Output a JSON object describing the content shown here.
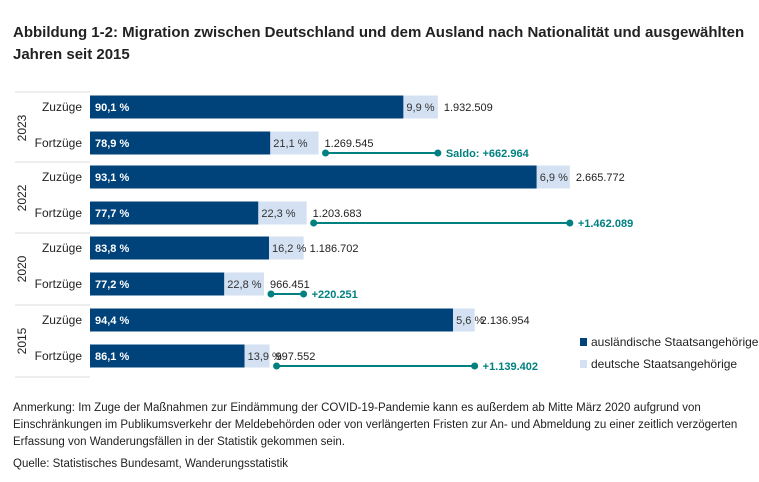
{
  "title": "Abbildung 1-2: Migration zwischen Deutschland und dem Ausland nach Nationalität und ausgewählten Jahren seit 2015",
  "note": "Anmerkung: Im Zuge der Maßnahmen zur Eindämmung der COVID-19-Pandemie kann es außerdem ab Mitte März 2020 aufgrund von Einschränkungen im Publikumsverkehr der Meldebehörden oder von verlängerten Fristen zur An- und Abmeldung zu einer zeitlich verzögerten Erfassung von Wanderungsfällen in der Statistik gekommen sein.",
  "source": "Quelle: Statistisches Bundesamt, Wanderungsstatistik",
  "colors": {
    "foreign": "#00427a",
    "german": "#d3e1f2",
    "saldo": "#008080"
  },
  "chart_data": {
    "type": "bar",
    "orientation": "horizontal-stacked",
    "legend_placement": "bottom-right",
    "series": [
      {
        "name": "ausländische Staatsangehörige"
      },
      {
        "name": "deutsche Staatsangehörige"
      }
    ],
    "groups": [
      {
        "year": "2023",
        "rows": [
          {
            "label": "Zuzüge",
            "foreign_pct": "90,1 %",
            "german_pct": "9,9 %",
            "total": 1932509,
            "total_label": "1.932.509"
          },
          {
            "label": "Fortzüge",
            "foreign_pct": "78,9 %",
            "german_pct": "21,1 %",
            "total": 1269545,
            "total_label": "1.269.545"
          }
        ],
        "saldo": 662964,
        "saldo_label": "Saldo: +662.964"
      },
      {
        "year": "2022",
        "rows": [
          {
            "label": "Zuzüge",
            "foreign_pct": "93,1 %",
            "german_pct": "6,9 %",
            "total": 2665772,
            "total_label": "2.665.772"
          },
          {
            "label": "Fortzüge",
            "foreign_pct": "77,7 %",
            "german_pct": "22,3 %",
            "total": 1203683,
            "total_label": "1.203.683"
          }
        ],
        "saldo": 1462089,
        "saldo_label": "+1.462.089"
      },
      {
        "year": "2020",
        "rows": [
          {
            "label": "Zuzüge",
            "foreign_pct": "83,8 %",
            "german_pct": "16,2 %",
            "total": 1186702,
            "total_label": "1.186.702"
          },
          {
            "label": "Fortzüge",
            "foreign_pct": "77,2 %",
            "german_pct": "22,8 %",
            "total": 966451,
            "total_label": "966.451"
          }
        ],
        "saldo": 220251,
        "saldo_label": "+220.251"
      },
      {
        "year": "2015",
        "rows": [
          {
            "label": "Zuzüge",
            "foreign_pct": "94,4 %",
            "german_pct": "5,6 %",
            "total": 2136954,
            "total_label": "2.136.954"
          },
          {
            "label": "Fortzüge",
            "foreign_pct": "86,1 %",
            "german_pct": "13,9 %",
            "total": 997552,
            "total_label": "997.552"
          }
        ],
        "saldo": 1139402,
        "saldo_label": "+1.139.402"
      }
    ]
  }
}
